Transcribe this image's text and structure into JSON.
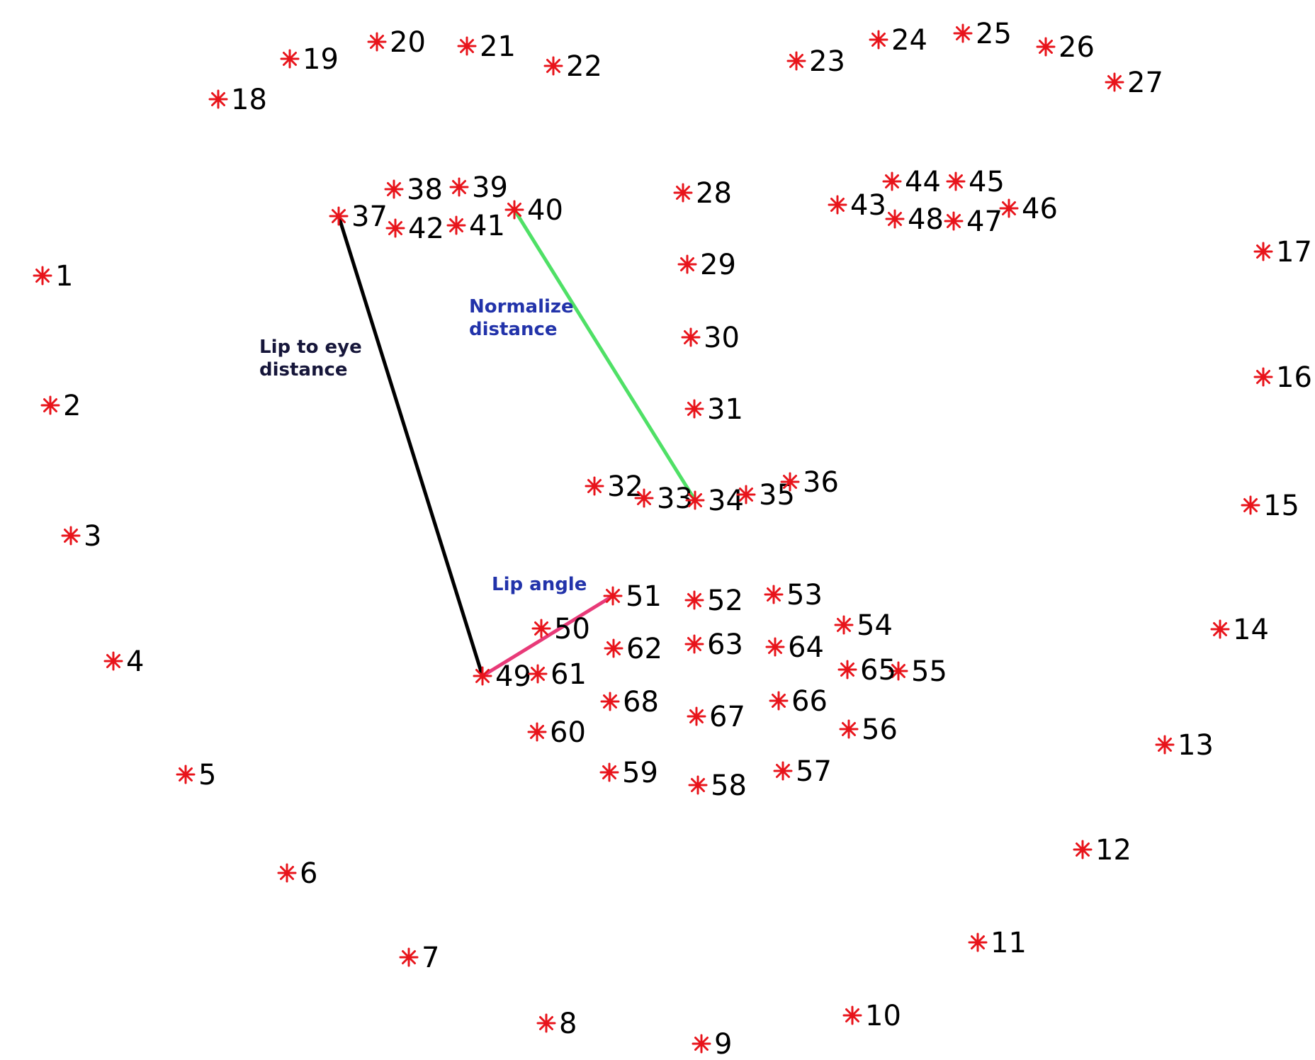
{
  "colors": {
    "marker": "#e8141b",
    "label": "#000000",
    "lip_eye_line": "#000000",
    "normalize_line": "#4fe066",
    "lip_angle_line": "#e83a78",
    "annotation_dark": "#16163a",
    "annotation_blue": "#2233aa"
  },
  "annotations": {
    "lip_to_eye_line1": "Lip to eye",
    "lip_to_eye_line2": "distance",
    "normalize_line1": "Normalize",
    "normalize_line2": "distance",
    "lip_angle": "Lip angle"
  },
  "landmarks": [
    {
      "id": "1"
    },
    {
      "id": "2"
    },
    {
      "id": "3"
    },
    {
      "id": "4"
    },
    {
      "id": "5"
    },
    {
      "id": "6"
    },
    {
      "id": "7"
    },
    {
      "id": "8"
    },
    {
      "id": "9"
    },
    {
      "id": "10"
    },
    {
      "id": "11"
    },
    {
      "id": "12"
    },
    {
      "id": "13"
    },
    {
      "id": "14"
    },
    {
      "id": "15"
    },
    {
      "id": "16"
    },
    {
      "id": "17"
    },
    {
      "id": "18"
    },
    {
      "id": "19"
    },
    {
      "id": "20"
    },
    {
      "id": "21"
    },
    {
      "id": "22"
    },
    {
      "id": "23"
    },
    {
      "id": "24"
    },
    {
      "id": "25"
    },
    {
      "id": "26"
    },
    {
      "id": "27"
    },
    {
      "id": "28"
    },
    {
      "id": "29"
    },
    {
      "id": "30"
    },
    {
      "id": "31"
    },
    {
      "id": "32"
    },
    {
      "id": "33"
    },
    {
      "id": "34"
    },
    {
      "id": "35"
    },
    {
      "id": "36"
    },
    {
      "id": "37"
    },
    {
      "id": "38"
    },
    {
      "id": "39"
    },
    {
      "id": "40"
    },
    {
      "id": "41"
    },
    {
      "id": "42"
    },
    {
      "id": "43"
    },
    {
      "id": "44"
    },
    {
      "id": "45"
    },
    {
      "id": "46"
    },
    {
      "id": "47"
    },
    {
      "id": "48"
    },
    {
      "id": "49"
    },
    {
      "id": "50"
    },
    {
      "id": "51"
    },
    {
      "id": "52"
    },
    {
      "id": "53"
    },
    {
      "id": "54"
    },
    {
      "id": "55"
    },
    {
      "id": "56"
    },
    {
      "id": "57"
    },
    {
      "id": "58"
    },
    {
      "id": "59"
    },
    {
      "id": "60"
    },
    {
      "id": "61"
    },
    {
      "id": "62"
    },
    {
      "id": "63"
    },
    {
      "id": "64"
    },
    {
      "id": "65"
    },
    {
      "id": "66"
    },
    {
      "id": "67"
    },
    {
      "id": "68"
    }
  ],
  "connections": [
    {
      "name": "lip-to-eye-line",
      "from": "37",
      "to": "49",
      "color_key": "lip_eye_line"
    },
    {
      "name": "normalize-distance-line",
      "from": "40",
      "to": "34",
      "color_key": "normalize_line"
    },
    {
      "name": "lip-angle-line",
      "from": "49",
      "to": "51",
      "color_key": "lip_angle_line"
    }
  ]
}
